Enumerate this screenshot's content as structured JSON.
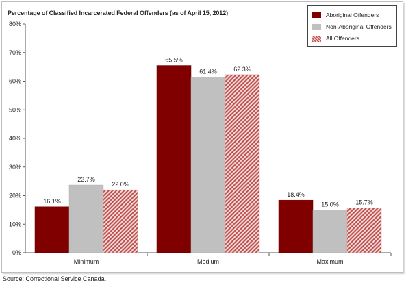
{
  "source_note": "Source:  Correctional Service Canada.",
  "colors": {
    "aboriginal": "#800000",
    "non_aboriginal": "#c0c0c0",
    "all_stripe": "#c0504d",
    "all_bg": "#f2dcdb"
  },
  "chart_data": {
    "type": "bar",
    "title": "Percentage of Classified Incarcerated Federal Offenders (as of April 15, 2012)",
    "categories": [
      "Minimum",
      "Medium",
      "Maximum"
    ],
    "series": [
      {
        "name": "Aboriginal Offenders",
        "values": [
          16.1,
          65.5,
          18.4
        ],
        "labels": [
          "16.1%",
          "65.5%",
          "18.4%"
        ],
        "fill": "solid-dark-red"
      },
      {
        "name": "Non-Aboriginal Offenders",
        "values": [
          23.7,
          61.4,
          15.0
        ],
        "labels": [
          "23.7%",
          "61.4%",
          "15.0%"
        ],
        "fill": "solid-grey"
      },
      {
        "name": "All Offenders",
        "values": [
          22.0,
          62.3,
          15.7
        ],
        "labels": [
          "22.0%",
          "62.3%",
          "15.7%"
        ],
        "fill": "diagonal-stripe"
      }
    ],
    "ylim": [
      0,
      80
    ],
    "yticks": [
      "0%",
      "10%",
      "20%",
      "30%",
      "40%",
      "50%",
      "60%",
      "70%",
      "80%"
    ],
    "grid": false,
    "legend_position": "top-right",
    "xlabel": "",
    "ylabel": ""
  }
}
